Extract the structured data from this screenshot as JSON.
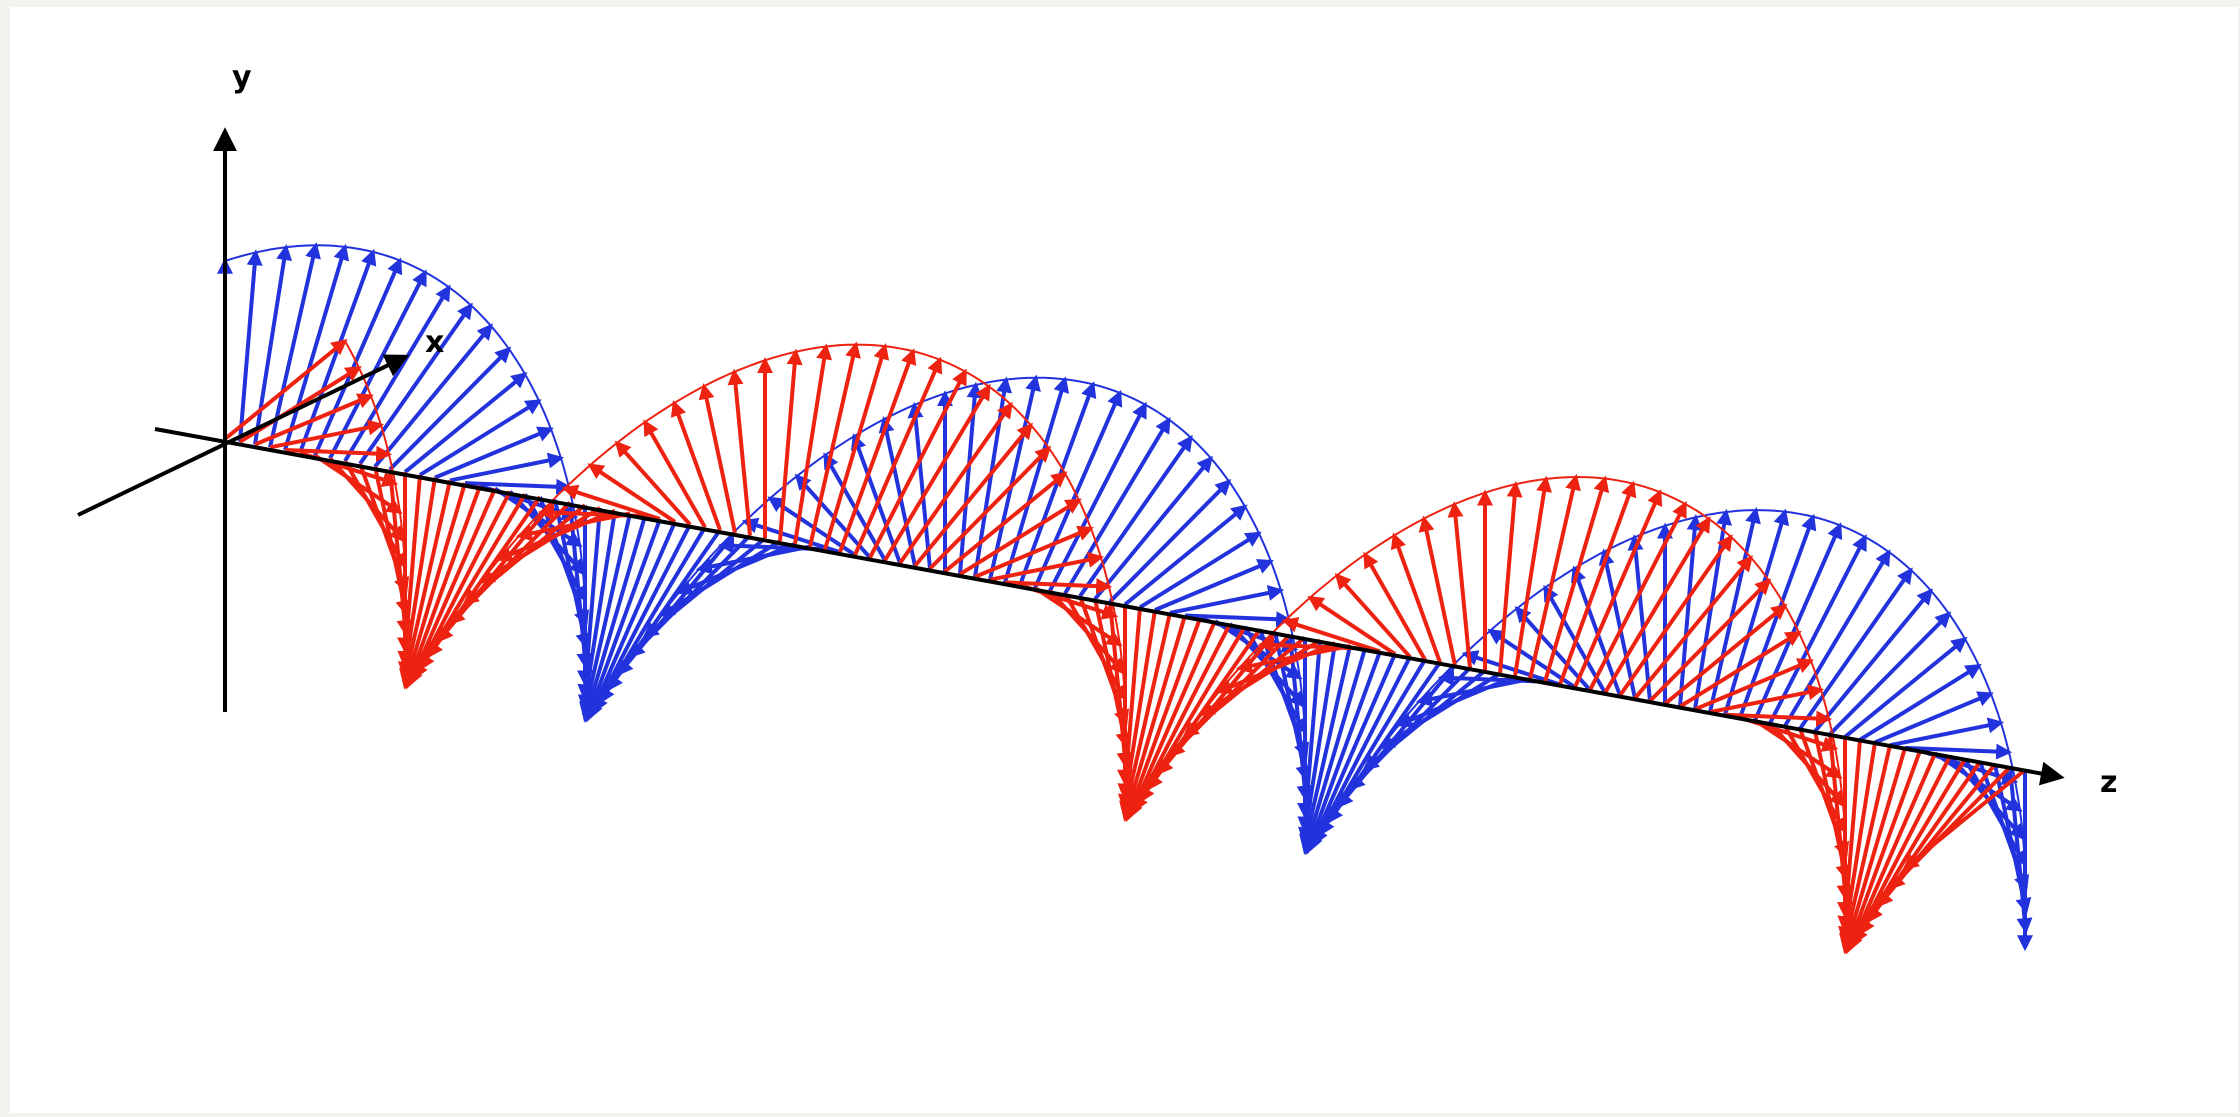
{
  "axes": {
    "x_label": "x",
    "y_label": "y",
    "z_label": "z"
  },
  "fields": [
    {
      "id": "field-a",
      "color": "#2233dd",
      "phase_deg": 0
    },
    {
      "id": "field-b",
      "color": "#ee2211",
      "phase_deg": 90
    }
  ],
  "colors": {
    "background": "#ffffff",
    "border": "#f2f2ee",
    "axis": "#000000"
  }
}
